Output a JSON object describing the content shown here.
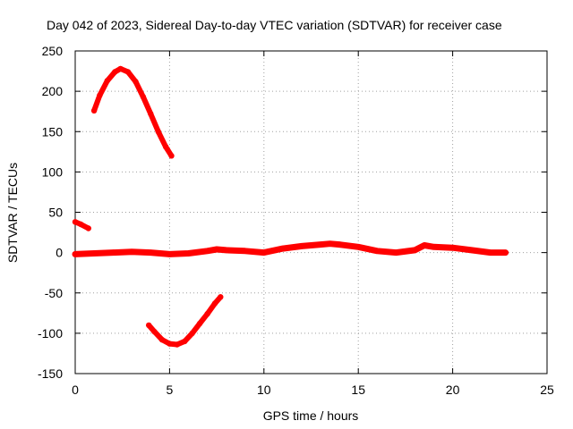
{
  "chart_data": {
    "type": "scatter",
    "title": "Day 042 of 2023, Sidereal Day-to-day VTEC variation (SDTVAR) for receiver case",
    "xlabel": "GPS time / hours",
    "ylabel": "SDTVAR / TECUs",
    "xlim": [
      0,
      25
    ],
    "ylim": [
      -150,
      250
    ],
    "xticks": [
      0,
      5,
      10,
      15,
      20,
      25
    ],
    "yticks": [
      -150,
      -100,
      -50,
      0,
      50,
      100,
      150,
      200,
      250
    ],
    "grid": true,
    "color": "#ff0000",
    "series": [
      {
        "name": "segment-a",
        "points": [
          [
            0.0,
            38
          ],
          [
            0.3,
            35
          ],
          [
            0.7,
            30
          ]
        ]
      },
      {
        "name": "segment-b",
        "points": [
          [
            1.0,
            176
          ],
          [
            1.3,
            195
          ],
          [
            1.7,
            213
          ],
          [
            2.1,
            224
          ],
          [
            2.4,
            228
          ],
          [
            2.8,
            224
          ],
          [
            3.2,
            212
          ],
          [
            3.6,
            193
          ],
          [
            4.0,
            172
          ],
          [
            4.4,
            150
          ],
          [
            4.8,
            131
          ],
          [
            5.1,
            120
          ]
        ]
      },
      {
        "name": "segment-c",
        "points": [
          [
            0.0,
            -2
          ],
          [
            1.0,
            -1
          ],
          [
            2.0,
            0
          ],
          [
            3.0,
            1
          ],
          [
            4.0,
            0
          ],
          [
            5.0,
            -2
          ],
          [
            6.0,
            -1
          ],
          [
            7.0,
            2
          ],
          [
            7.5,
            4
          ],
          [
            8.0,
            3
          ],
          [
            9.0,
            2
          ],
          [
            10.0,
            0
          ],
          [
            11.0,
            5
          ],
          [
            12.0,
            8
          ],
          [
            13.0,
            10
          ],
          [
            13.5,
            11
          ],
          [
            14.0,
            10
          ],
          [
            15.0,
            7
          ],
          [
            16.0,
            2
          ],
          [
            17.0,
            0
          ],
          [
            18.0,
            3
          ],
          [
            18.5,
            9
          ],
          [
            19.0,
            7
          ],
          [
            20.0,
            6
          ],
          [
            21.0,
            3
          ],
          [
            22.0,
            0
          ],
          [
            22.8,
            0
          ]
        ]
      },
      {
        "name": "segment-d",
        "points": [
          [
            3.9,
            -90
          ],
          [
            4.2,
            -98
          ],
          [
            4.6,
            -108
          ],
          [
            5.0,
            -113
          ],
          [
            5.4,
            -114
          ],
          [
            5.8,
            -110
          ],
          [
            6.2,
            -100
          ],
          [
            6.6,
            -88
          ],
          [
            7.0,
            -76
          ],
          [
            7.4,
            -63
          ],
          [
            7.7,
            -55
          ]
        ]
      }
    ]
  }
}
